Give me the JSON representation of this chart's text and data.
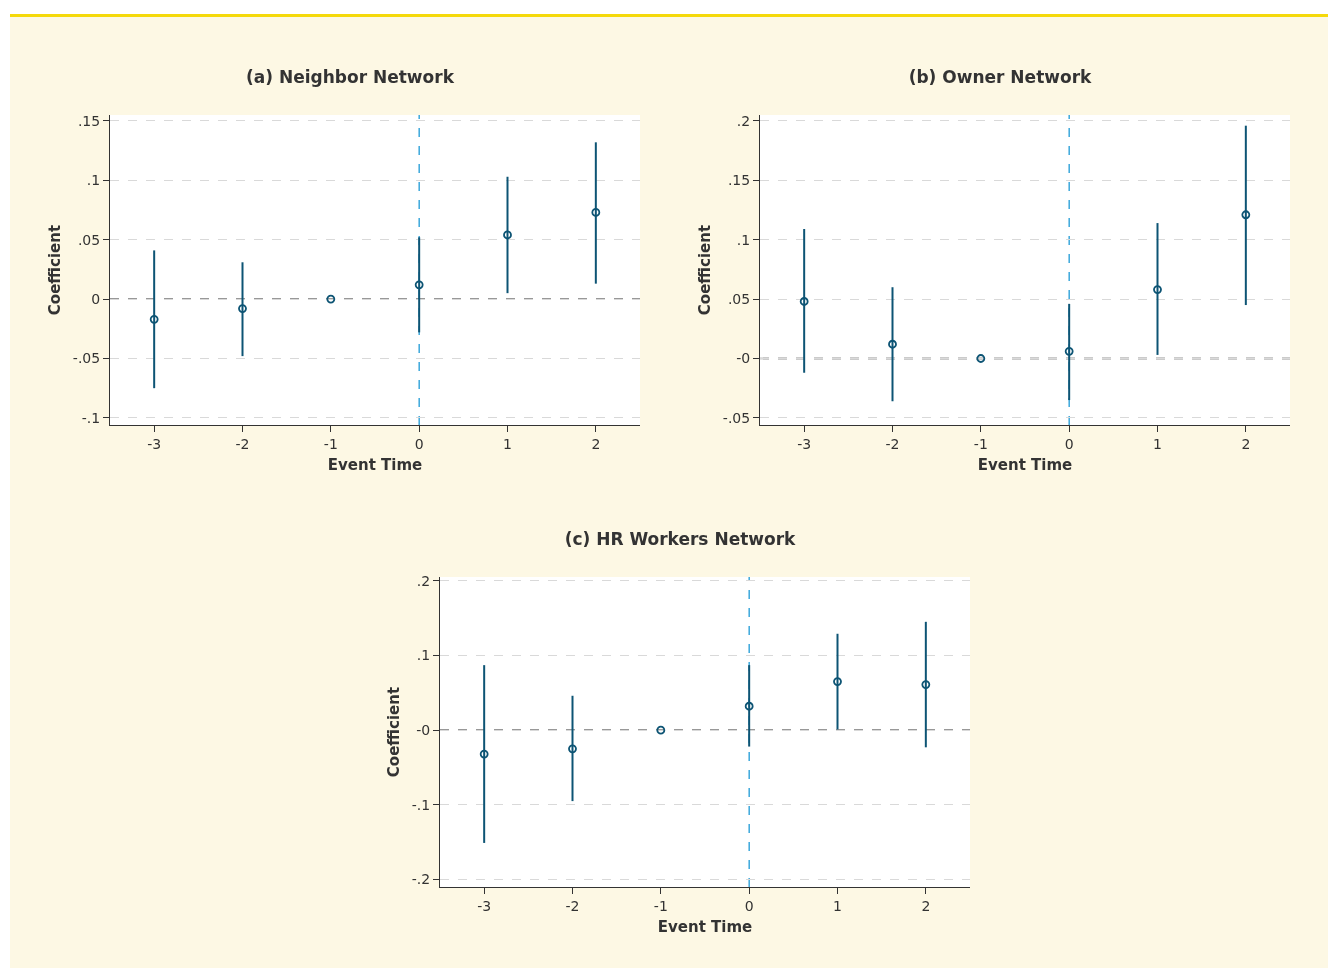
{
  "chart_data": [
    {
      "type": "scatter",
      "title": "(a) Neighbor Network",
      "xlabel": "Event Time",
      "ylabel": "Coefficient",
      "x": [
        -3,
        -2,
        -1,
        0,
        1,
        2
      ],
      "series": [
        {
          "color": "#0d5474",
          "values": [
            -0.017,
            -0.008,
            0,
            0.012,
            0.054,
            0.073
          ],
          "errors": [
            [
              -0.075,
              0.041
            ],
            [
              -0.048,
              0.031
            ],
            null,
            [
              -0.028,
              0.052
            ],
            [
              0.005,
              0.103
            ],
            [
              0.013,
              0.132
            ]
          ]
        }
      ],
      "xlim": [
        -3.5,
        2.5
      ],
      "xticks": [
        -3,
        -2,
        -1,
        0,
        1,
        2
      ],
      "ylim": [
        -0.106,
        0.155
      ],
      "yticks": [
        {
          "value": 0.15,
          "label": ".15"
        },
        {
          "value": 0.1,
          "label": ".1"
        },
        {
          "value": 0.05,
          "label": ".05"
        },
        0,
        {
          "value": -0.05,
          "label": "-.05"
        },
        {
          "value": -0.1,
          "label": "-.1"
        }
      ],
      "ref_lines": [
        {
          "axis": "x",
          "value": 0,
          "color": "#1e9ad6",
          "line_style": "dashed"
        },
        {
          "axis": "y",
          "value": 0,
          "color": "#333333",
          "line_style": "dashed"
        }
      ],
      "grid": "y",
      "marker": "circle"
    },
    {
      "type": "scatter",
      "title": "(b) Owner Network",
      "xlabel": "Event Time",
      "ylabel": "Coefficient",
      "x": [
        -3,
        -2,
        -1,
        0,
        1,
        2
      ],
      "series": [
        {
          "color": "#0d5474",
          "values": [
            0.048,
            0.012,
            0,
            0.006,
            0.058,
            0.121
          ],
          "errors": [
            [
              -0.012,
              0.109
            ],
            [
              -0.036,
              0.06
            ],
            null,
            [
              -0.035,
              0.046
            ],
            [
              0.003,
              0.114
            ],
            [
              0.045,
              0.196
            ]
          ]
        }
      ],
      "xlim": [
        -3.5,
        2.5
      ],
      "xticks": [
        -3,
        -2,
        -1,
        0,
        1,
        2
      ],
      "ylim": [
        -0.056,
        0.205
      ],
      "yticks": [
        {
          "value": 0.2,
          "label": ".2"
        },
        {
          "value": 0.15,
          "label": ".15"
        },
        {
          "value": 0.1,
          "label": ".1"
        },
        {
          "value": 0.05,
          "label": ".05"
        },
        {
          "value": 0,
          "label": "-0"
        },
        {
          "value": -0.05,
          "label": "-.05"
        }
      ],
      "ref_lines": [
        {
          "axis": "x",
          "value": 0,
          "color": "#1e9ad6",
          "line_style": "dashed"
        },
        {
          "axis": "y",
          "value": 0,
          "color": "#333333",
          "line_style": "dashed"
        }
      ],
      "grid": "y",
      "marker": "circle"
    },
    {
      "type": "scatter",
      "title": "(c) HR Workers Network",
      "xlabel": "Event Time",
      "ylabel": "Coefficient",
      "x": [
        -3,
        -2,
        -1,
        0,
        1,
        2
      ],
      "series": [
        {
          "color": "#0d5474",
          "values": [
            -0.032,
            -0.025,
            0,
            0.032,
            0.065,
            0.061
          ],
          "errors": [
            [
              -0.151,
              0.087
            ],
            [
              -0.095,
              0.046
            ],
            null,
            [
              -0.022,
              0.087
            ],
            [
              0.001,
              0.129
            ],
            [
              -0.023,
              0.145
            ]
          ]
        }
      ],
      "xlim": [
        -3.5,
        2.5
      ],
      "xticks": [
        -3,
        -2,
        -1,
        0,
        1,
        2
      ],
      "ylim": [
        -0.21,
        0.205
      ],
      "yticks": [
        {
          "value": 0.2,
          "label": ".2"
        },
        {
          "value": 0.1,
          "label": ".1"
        },
        {
          "value": 0,
          "label": "-0"
        },
        {
          "value": -0.1,
          "label": "-.1"
        },
        {
          "value": -0.2,
          "label": "-.2"
        }
      ],
      "ref_lines": [
        {
          "axis": "x",
          "value": 0,
          "color": "#1e9ad6",
          "line_style": "dashed"
        },
        {
          "axis": "y",
          "value": 0,
          "color": "#333333",
          "line_style": "dashed"
        }
      ],
      "grid": "y",
      "marker": "circle"
    }
  ]
}
